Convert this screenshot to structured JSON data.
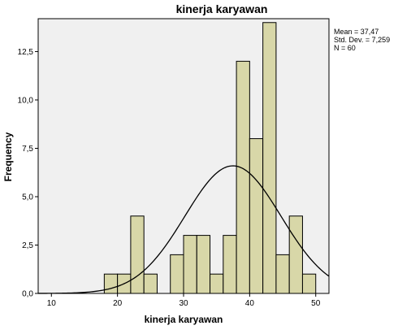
{
  "chart_data": {
    "type": "bar",
    "title": "kinerja karyawan",
    "xlabel": "kinerja karyawan",
    "ylabel": "Frequency",
    "xlim": [
      8,
      52
    ],
    "ylim": [
      0,
      14.2
    ],
    "x_ticks": [
      10,
      20,
      30,
      40,
      50
    ],
    "y_ticks": [
      0,
      2.5,
      5,
      7.5,
      10,
      12.5
    ],
    "y_tick_labels": [
      "0,0",
      "2,5",
      "5,0",
      "7,5",
      "10,0",
      "12,5"
    ],
    "bin_width": 2,
    "bins": [
      {
        "start": 18,
        "value": 1
      },
      {
        "start": 20,
        "value": 1
      },
      {
        "start": 22,
        "value": 4
      },
      {
        "start": 24,
        "value": 1
      },
      {
        "start": 26,
        "value": 0
      },
      {
        "start": 28,
        "value": 2
      },
      {
        "start": 30,
        "value": 3
      },
      {
        "start": 32,
        "value": 3
      },
      {
        "start": 34,
        "value": 1
      },
      {
        "start": 36,
        "value": 3
      },
      {
        "start": 38,
        "value": 12
      },
      {
        "start": 40,
        "value": 8
      },
      {
        "start": 42,
        "value": 14
      },
      {
        "start": 44,
        "value": 2
      },
      {
        "start": 46,
        "value": 4
      },
      {
        "start": 48,
        "value": 1
      }
    ],
    "normal_curve": {
      "mean": 37.47,
      "sd": 7.259,
      "n": 60
    },
    "stats": [
      "Mean = 37,47",
      "Std. Dev. = 7,259",
      "N = 60"
    ],
    "grid": false,
    "colors": {
      "bar_fill": "#d8d7a8",
      "plot_bg": "#f0f0f0",
      "curve": "#000000"
    }
  }
}
